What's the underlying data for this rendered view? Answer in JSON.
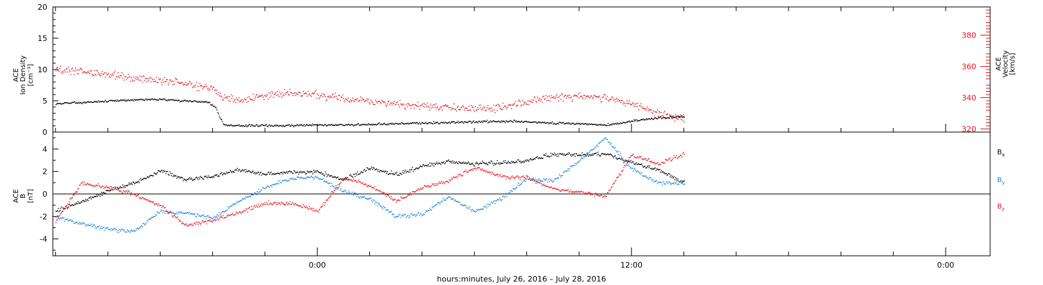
{
  "chart_data": [
    {
      "type": "scatter",
      "panel": "top",
      "ylabel": [
        "ACE",
        "Ion Density",
        "[cm⁻³]"
      ],
      "ylim": [
        0,
        20
      ],
      "yticks": [
        0,
        5,
        10,
        15,
        20
      ],
      "right_ylabel": [
        "ACE",
        "Velocity",
        "[km/s]"
      ],
      "right_ylim": [
        318,
        398
      ],
      "right_yticks": [
        320,
        340,
        360,
        380
      ],
      "right_axis_color": "#e8141c",
      "series": [
        {
          "axis": "left",
          "color": "#000000",
          "points": [
            [
              -10,
              4.6
            ],
            [
              -9,
              4.8
            ],
            [
              -8,
              5.0
            ],
            [
              -7,
              5.2
            ],
            [
              -6,
              5.3
            ],
            [
              -5,
              5.0
            ],
            [
              -4.2,
              4.9
            ],
            [
              -3.9,
              4.0
            ],
            [
              -3.6,
              1.2
            ],
            [
              -3,
              1.1
            ],
            [
              -2,
              1.1
            ],
            [
              -1,
              1.1
            ],
            [
              0,
              1.2
            ],
            [
              1,
              1.2
            ],
            [
              2,
              1.3
            ],
            [
              3,
              1.4
            ],
            [
              4,
              1.5
            ],
            [
              5,
              1.6
            ],
            [
              6,
              1.7
            ],
            [
              7,
              1.8
            ],
            [
              8,
              1.7
            ],
            [
              9,
              1.5
            ],
            [
              10,
              1.4
            ],
            [
              11,
              1.2
            ],
            [
              12,
              1.8
            ],
            [
              13,
              2.3
            ],
            [
              14,
              2.6
            ]
          ]
        },
        {
          "axis": "right",
          "color": "#e8141c",
          "points": [
            [
              -10,
              358
            ],
            [
              -9,
              357
            ],
            [
              -8,
              355
            ],
            [
              -7,
              353
            ],
            [
              -6,
              351
            ],
            [
              -5,
              349
            ],
            [
              -4,
              346
            ],
            [
              -3.6,
              340
            ],
            [
              -3,
              338
            ],
            [
              -2,
              342
            ],
            [
              -1,
              343
            ],
            [
              0,
              342
            ],
            [
              1,
              340
            ],
            [
              2,
              338
            ],
            [
              3,
              336
            ],
            [
              4,
              335
            ],
            [
              5,
              334
            ],
            [
              6,
              333
            ],
            [
              7,
              334
            ],
            [
              8,
              337
            ],
            [
              9,
              340
            ],
            [
              10,
              341
            ],
            [
              11,
              340
            ],
            [
              12,
              336
            ],
            [
              13,
              330
            ],
            [
              14,
              327
            ]
          ]
        }
      ]
    },
    {
      "type": "scatter",
      "panel": "bottom",
      "ylabel": [
        "ACE",
        "B",
        "[nT]"
      ],
      "ylim": [
        -5.5,
        5.5
      ],
      "yticks": [
        -4,
        -2,
        0,
        2,
        4
      ],
      "zero_line": true,
      "legend": [
        {
          "text": "B",
          "sub": "x",
          "color": "#000000"
        },
        {
          "text": "B",
          "sub": "y",
          "color": "#1c86dc"
        },
        {
          "text": "B",
          "sub": "z",
          "color": "#e8141c"
        }
      ],
      "series": [
        {
          "name": "Bx",
          "color": "#000000",
          "points": [
            [
              -10,
              -1.5
            ],
            [
              -9,
              -0.6
            ],
            [
              -8,
              0.3
            ],
            [
              -7,
              1.0
            ],
            [
              -6,
              2.1
            ],
            [
              -5,
              1.3
            ],
            [
              -4,
              1.6
            ],
            [
              -3,
              2.2
            ],
            [
              -2,
              1.8
            ],
            [
              -1,
              2.0
            ],
            [
              0,
              2.0
            ],
            [
              1,
              1.3
            ],
            [
              2,
              2.3
            ],
            [
              3,
              1.8
            ],
            [
              4,
              2.5
            ],
            [
              5,
              2.9
            ],
            [
              6,
              2.7
            ],
            [
              7,
              2.8
            ],
            [
              8,
              3.0
            ],
            [
              9,
              3.6
            ],
            [
              10,
              3.5
            ],
            [
              11,
              3.6
            ],
            [
              12,
              2.8
            ],
            [
              13,
              2.2
            ],
            [
              14,
              1.0
            ]
          ]
        },
        {
          "name": "By",
          "color": "#1c86dc",
          "points": [
            [
              -10,
              -2.0
            ],
            [
              -9,
              -2.6
            ],
            [
              -8,
              -3.1
            ],
            [
              -7,
              -3.3
            ],
            [
              -6,
              -1.5
            ],
            [
              -5,
              -1.7
            ],
            [
              -4,
              -2.1
            ],
            [
              -3,
              -0.6
            ],
            [
              -2,
              0.6
            ],
            [
              -1,
              1.4
            ],
            [
              0,
              1.5
            ],
            [
              1,
              0.3
            ],
            [
              2,
              -0.4
            ],
            [
              3,
              -2.0
            ],
            [
              4,
              -1.8
            ],
            [
              5,
              -0.2
            ],
            [
              6,
              -1.5
            ],
            [
              7,
              -0.4
            ],
            [
              8,
              1.4
            ],
            [
              9,
              1.2
            ],
            [
              10,
              3.0
            ],
            [
              11,
              5.0
            ],
            [
              12,
              2.3
            ],
            [
              13,
              1.0
            ],
            [
              14,
              1.0
            ]
          ]
        },
        {
          "name": "Bz",
          "color": "#e8141c",
          "points": [
            [
              -10,
              -2.4
            ],
            [
              -9,
              1.0
            ],
            [
              -8,
              0.6
            ],
            [
              -7,
              0.0
            ],
            [
              -6,
              -1.0
            ],
            [
              -5,
              -2.8
            ],
            [
              -4,
              -2.3
            ],
            [
              -3,
              -1.6
            ],
            [
              -2,
              -0.8
            ],
            [
              -1,
              -0.8
            ],
            [
              0,
              -1.5
            ],
            [
              1,
              1.4
            ],
            [
              2,
              0.8
            ],
            [
              3,
              -0.6
            ],
            [
              4,
              0.6
            ],
            [
              5,
              1.2
            ],
            [
              6,
              2.4
            ],
            [
              7,
              1.6
            ],
            [
              8,
              1.5
            ],
            [
              9,
              0.5
            ],
            [
              10,
              0.2
            ],
            [
              11,
              -0.2
            ],
            [
              12,
              3.5
            ],
            [
              13,
              2.7
            ],
            [
              14,
              3.6
            ]
          ]
        }
      ]
    }
  ],
  "x_axis": {
    "range_hours": [
      -10.1,
      25.7
    ],
    "tick_labels": [
      {
        "label": "0:00",
        "hour": 0
      },
      {
        "label": "12:00",
        "hour": 12
      },
      {
        "label": "0:00",
        "hour": 24
      }
    ],
    "minor_tick_hours": [
      -10,
      -8,
      -6,
      -4,
      -2,
      2,
      4,
      6,
      8,
      10,
      14,
      16,
      18,
      20,
      22,
      24
    ],
    "caption": "hours:minutes, July 26, 2016 – July 28, 2016"
  }
}
